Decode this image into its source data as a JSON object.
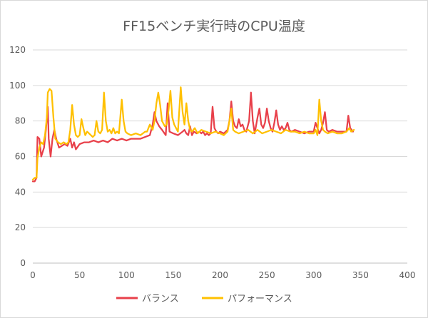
{
  "chart_data": {
    "type": "line",
    "title": "FF15ベンチ実行時のCPU温度",
    "xlabel": "",
    "ylabel": "",
    "xlim": [
      0,
      400
    ],
    "ylim": [
      0,
      120
    ],
    "x_ticks": [
      "0",
      "50",
      "100",
      "150",
      "200",
      "250",
      "300",
      "350",
      "400"
    ],
    "y_ticks": [
      "0",
      "20",
      "40",
      "60",
      "80",
      "100",
      "120"
    ],
    "grid": "horizontal",
    "legend_position": "bottom",
    "series": [
      {
        "name": "バランス",
        "color": "#e8404a",
        "points": [
          [
            0,
            46
          ],
          [
            2,
            46
          ],
          [
            4,
            48
          ],
          [
            5,
            71
          ],
          [
            7,
            70
          ],
          [
            9,
            60
          ],
          [
            12,
            65
          ],
          [
            14,
            75
          ],
          [
            16,
            88
          ],
          [
            17,
            70
          ],
          [
            19,
            60
          ],
          [
            21,
            70
          ],
          [
            23,
            75
          ],
          [
            25,
            70
          ],
          [
            28,
            65
          ],
          [
            31,
            66
          ],
          [
            34,
            67
          ],
          [
            37,
            66
          ],
          [
            40,
            70
          ],
          [
            42,
            65
          ],
          [
            44,
            68
          ],
          [
            46,
            64
          ],
          [
            50,
            67
          ],
          [
            55,
            68
          ],
          [
            60,
            68
          ],
          [
            65,
            69
          ],
          [
            70,
            68
          ],
          [
            75,
            69
          ],
          [
            80,
            68
          ],
          [
            85,
            70
          ],
          [
            90,
            69
          ],
          [
            95,
            70
          ],
          [
            100,
            69
          ],
          [
            105,
            70
          ],
          [
            110,
            70
          ],
          [
            115,
            70
          ],
          [
            120,
            71
          ],
          [
            125,
            72
          ],
          [
            128,
            78
          ],
          [
            130,
            85
          ],
          [
            132,
            80
          ],
          [
            135,
            77
          ],
          [
            138,
            75
          ],
          [
            142,
            72
          ],
          [
            144,
            90
          ],
          [
            146,
            74
          ],
          [
            150,
            73
          ],
          [
            155,
            72
          ],
          [
            160,
            74
          ],
          [
            162,
            75
          ],
          [
            164,
            73
          ],
          [
            166,
            72
          ],
          [
            168,
            77
          ],
          [
            170,
            72
          ],
          [
            172,
            74
          ],
          [
            175,
            73
          ],
          [
            178,
            74
          ],
          [
            180,
            73
          ],
          [
            182,
            74
          ],
          [
            184,
            72
          ],
          [
            186,
            73
          ],
          [
            188,
            72
          ],
          [
            190,
            73
          ],
          [
            192,
            88
          ],
          [
            194,
            76
          ],
          [
            196,
            74
          ],
          [
            198,
            73
          ],
          [
            200,
            74
          ],
          [
            204,
            73
          ],
          [
            208,
            75
          ],
          [
            210,
            80
          ],
          [
            212,
            91
          ],
          [
            214,
            80
          ],
          [
            216,
            77
          ],
          [
            218,
            76
          ],
          [
            220,
            81
          ],
          [
            222,
            77
          ],
          [
            224,
            78
          ],
          [
            226,
            75
          ],
          [
            228,
            74
          ],
          [
            231,
            80
          ],
          [
            233,
            96
          ],
          [
            235,
            80
          ],
          [
            237,
            73
          ],
          [
            240,
            82
          ],
          [
            242,
            87
          ],
          [
            244,
            78
          ],
          [
            246,
            76
          ],
          [
            248,
            79
          ],
          [
            250,
            87
          ],
          [
            252,
            80
          ],
          [
            254,
            76
          ],
          [
            256,
            74
          ],
          [
            258,
            79
          ],
          [
            260,
            86
          ],
          [
            262,
            78
          ],
          [
            264,
            75
          ],
          [
            266,
            77
          ],
          [
            268,
            75
          ],
          [
            270,
            76
          ],
          [
            272,
            79
          ],
          [
            274,
            75
          ],
          [
            276,
            74
          ],
          [
            280,
            75
          ],
          [
            285,
            74
          ],
          [
            290,
            73
          ],
          [
            295,
            74
          ],
          [
            300,
            74
          ],
          [
            302,
            79
          ],
          [
            304,
            76
          ],
          [
            306,
            73
          ],
          [
            308,
            75
          ],
          [
            310,
            79
          ],
          [
            312,
            85
          ],
          [
            314,
            75
          ],
          [
            316,
            74
          ],
          [
            320,
            75
          ],
          [
            325,
            74
          ],
          [
            330,
            74
          ],
          [
            335,
            74
          ],
          [
            337,
            83
          ],
          [
            339,
            76
          ],
          [
            342,
            74
          ]
        ]
      },
      {
        "name": "パフォーマンス",
        "color": "#ffc000",
        "points": [
          [
            0,
            47
          ],
          [
            2,
            48
          ],
          [
            4,
            48
          ],
          [
            5,
            59
          ],
          [
            7,
            65
          ],
          [
            9,
            68
          ],
          [
            11,
            67
          ],
          [
            13,
            72
          ],
          [
            15,
            82
          ],
          [
            16,
            96
          ],
          [
            18,
            98
          ],
          [
            20,
            97
          ],
          [
            22,
            82
          ],
          [
            24,
            70
          ],
          [
            27,
            68
          ],
          [
            30,
            67
          ],
          [
            33,
            68
          ],
          [
            36,
            67
          ],
          [
            38,
            68
          ],
          [
            40,
            75
          ],
          [
            42,
            89
          ],
          [
            44,
            78
          ],
          [
            46,
            72
          ],
          [
            48,
            71
          ],
          [
            50,
            72
          ],
          [
            52,
            81
          ],
          [
            54,
            76
          ],
          [
            56,
            72
          ],
          [
            58,
            74
          ],
          [
            60,
            73
          ],
          [
            62,
            72
          ],
          [
            64,
            71
          ],
          [
            66,
            72
          ],
          [
            68,
            80
          ],
          [
            70,
            74
          ],
          [
            72,
            73
          ],
          [
            74,
            75
          ],
          [
            76,
            96
          ],
          [
            78,
            80
          ],
          [
            80,
            74
          ],
          [
            82,
            75
          ],
          [
            84,
            73
          ],
          [
            86,
            76
          ],
          [
            88,
            73
          ],
          [
            90,
            74
          ],
          [
            92,
            73
          ],
          [
            95,
            92
          ],
          [
            97,
            80
          ],
          [
            99,
            74
          ],
          [
            101,
            73
          ],
          [
            105,
            72
          ],
          [
            110,
            73
          ],
          [
            115,
            72
          ],
          [
            120,
            74
          ],
          [
            122,
            74
          ],
          [
            125,
            78
          ],
          [
            128,
            75
          ],
          [
            130,
            80
          ],
          [
            132,
            90
          ],
          [
            134,
            96
          ],
          [
            136,
            89
          ],
          [
            138,
            80
          ],
          [
            141,
            77
          ],
          [
            143,
            78
          ],
          [
            145,
            86
          ],
          [
            147,
            97
          ],
          [
            149,
            82
          ],
          [
            151,
            78
          ],
          [
            153,
            76
          ],
          [
            155,
            74
          ],
          [
            158,
            99
          ],
          [
            160,
            85
          ],
          [
            162,
            78
          ],
          [
            164,
            90
          ],
          [
            166,
            80
          ],
          [
            168,
            75
          ],
          [
            170,
            74
          ],
          [
            173,
            76
          ],
          [
            176,
            73
          ],
          [
            180,
            75
          ],
          [
            185,
            74
          ],
          [
            190,
            73
          ],
          [
            195,
            74
          ],
          [
            200,
            73
          ],
          [
            204,
            72
          ],
          [
            208,
            74
          ],
          [
            210,
            80
          ],
          [
            212,
            87
          ],
          [
            214,
            75
          ],
          [
            216,
            74
          ],
          [
            220,
            73
          ],
          [
            225,
            74
          ],
          [
            230,
            75
          ],
          [
            235,
            73
          ],
          [
            240,
            75
          ],
          [
            245,
            73
          ],
          [
            250,
            74
          ],
          [
            255,
            75
          ],
          [
            260,
            74
          ],
          [
            265,
            73
          ],
          [
            270,
            75
          ],
          [
            275,
            74
          ],
          [
            280,
            74
          ],
          [
            285,
            73
          ],
          [
            290,
            74
          ],
          [
            295,
            73
          ],
          [
            300,
            73
          ],
          [
            302,
            75
          ],
          [
            304,
            72
          ],
          [
            306,
            92
          ],
          [
            308,
            80
          ],
          [
            310,
            75
          ],
          [
            312,
            74
          ],
          [
            315,
            73
          ],
          [
            320,
            74
          ],
          [
            325,
            73
          ],
          [
            330,
            73
          ],
          [
            335,
            74
          ],
          [
            338,
            76
          ],
          [
            340,
            74
          ],
          [
            343,
            75
          ]
        ]
      }
    ]
  }
}
